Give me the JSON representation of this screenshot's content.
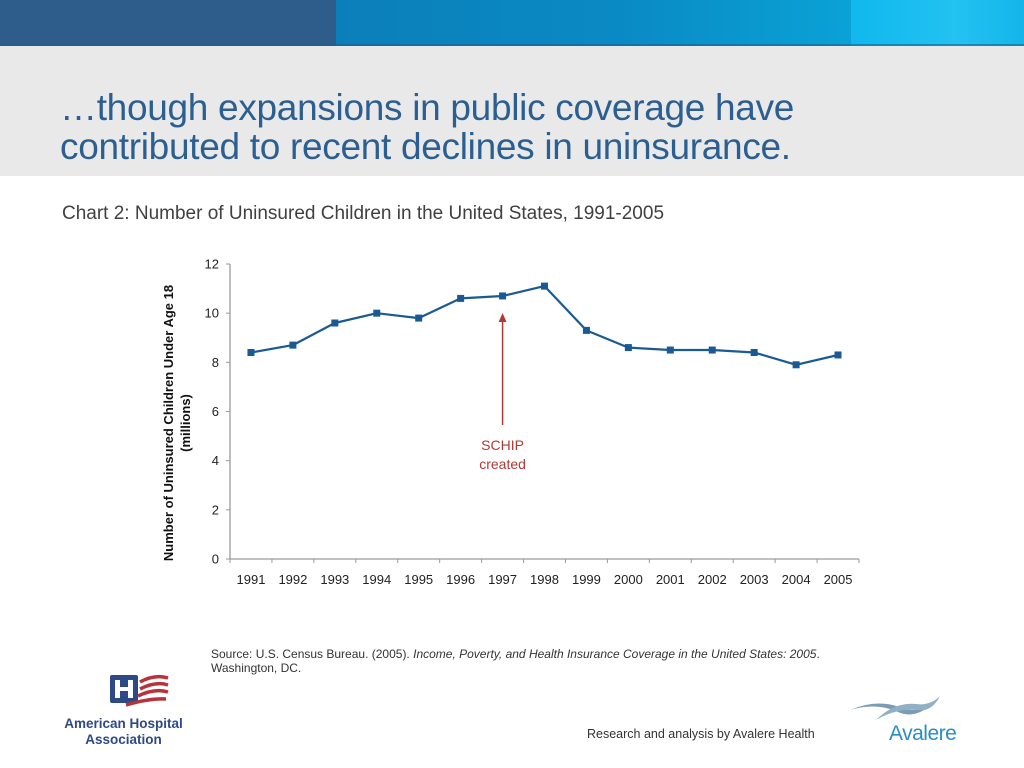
{
  "header": {
    "title_line1": "…though expansions in public coverage have",
    "title_line2": "contributed to recent declines in uninsurance.",
    "colors": {
      "band_dark": "#2e5d8c",
      "band_mid": "#0a8ac4",
      "band_light": "#14b5ea",
      "title": "#2c5f91",
      "title_band": "#e9e9ea"
    }
  },
  "chart_caption": "Chart 2:  Number of Uninsured Children in the United States, 1991-2005",
  "chart_data": {
    "type": "line",
    "title": "Chart 2:  Number of Uninsured Children in the United States, 1991-2005",
    "xlabel": "",
    "ylabel_line1": "Number of Uninsured Children Under Age 18",
    "ylabel_line2": "(millions)",
    "ylim": [
      0,
      12
    ],
    "yticks": [
      "0",
      "2",
      "4",
      "6",
      "8",
      "10",
      "12"
    ],
    "grid": false,
    "legend": "none",
    "categories": [
      "1991",
      "1992",
      "1993",
      "1994",
      "1995",
      "1996",
      "1997",
      "1998",
      "1999",
      "2000",
      "2001",
      "2002",
      "2003",
      "2004",
      "2005"
    ],
    "series": [
      {
        "name": "Uninsured children (millions)",
        "color": "#1a5a94",
        "marker": "square",
        "values": [
          8.4,
          8.7,
          9.6,
          10.0,
          9.8,
          10.6,
          10.7,
          11.1,
          9.3,
          8.6,
          8.5,
          8.5,
          8.4,
          7.9,
          8.3
        ]
      }
    ],
    "annotations": [
      {
        "category": "1997",
        "text_line1": "SCHIP",
        "text_line2": "created",
        "color": "#b03a35",
        "type": "arrow-up"
      }
    ]
  },
  "source": {
    "prefix": "Source: U.S. Census Bureau. (2005). ",
    "italic": "Income, Poverty, and Health Insurance Coverage in the United States: 2005",
    "suffix": ". Washington, DC."
  },
  "footer": {
    "credit": "Research and analysis by Avalere Health",
    "aha_logo_line1": "American Hospital",
    "aha_logo_line2": "Association",
    "avalere_logo_text": "Avalere"
  }
}
